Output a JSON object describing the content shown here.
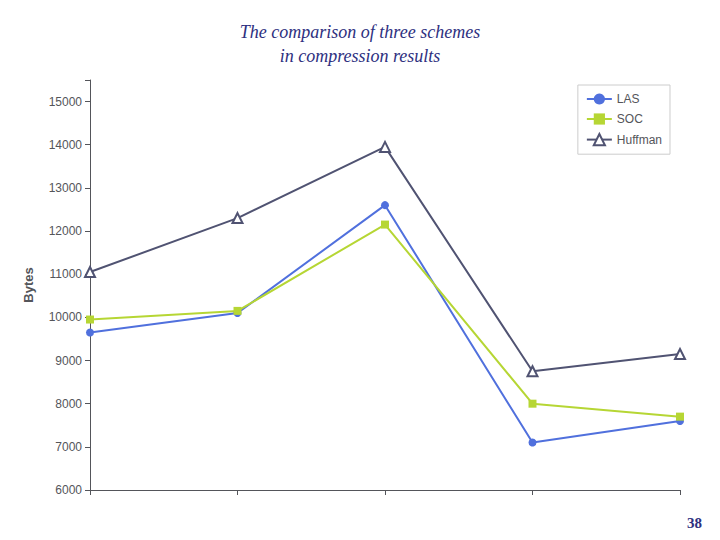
{
  "chart_data": {
    "type": "line",
    "title": "The comparison of three schemes",
    "subtitle": "in compression results",
    "annotations": [
      "38"
    ],
    "ylabel": "Bytes",
    "x": [
      1,
      2,
      3,
      4,
      5
    ],
    "xlim": [
      1,
      5
    ],
    "xticks": [
      1,
      2,
      3,
      4,
      5
    ],
    "ylim": [
      6000,
      15500
    ],
    "yticks": [
      6000,
      7000,
      8000,
      9000,
      10000,
      11000,
      12000,
      13000,
      14000,
      15000
    ],
    "series": [
      {
        "name": "LAS",
        "marker": "circle",
        "values": [
          9650,
          10100,
          12600,
          7100,
          7600
        ]
      },
      {
        "name": "SOC",
        "marker": "square",
        "values": [
          9950,
          10150,
          12150,
          8000,
          7700
        ]
      },
      {
        "name": "Huffman",
        "marker": "triangle-open",
        "values": [
          11050,
          12300,
          13950,
          8750,
          9150
        ]
      }
    ],
    "tick_labels": "y",
    "grid": false,
    "legend": "upper right"
  }
}
